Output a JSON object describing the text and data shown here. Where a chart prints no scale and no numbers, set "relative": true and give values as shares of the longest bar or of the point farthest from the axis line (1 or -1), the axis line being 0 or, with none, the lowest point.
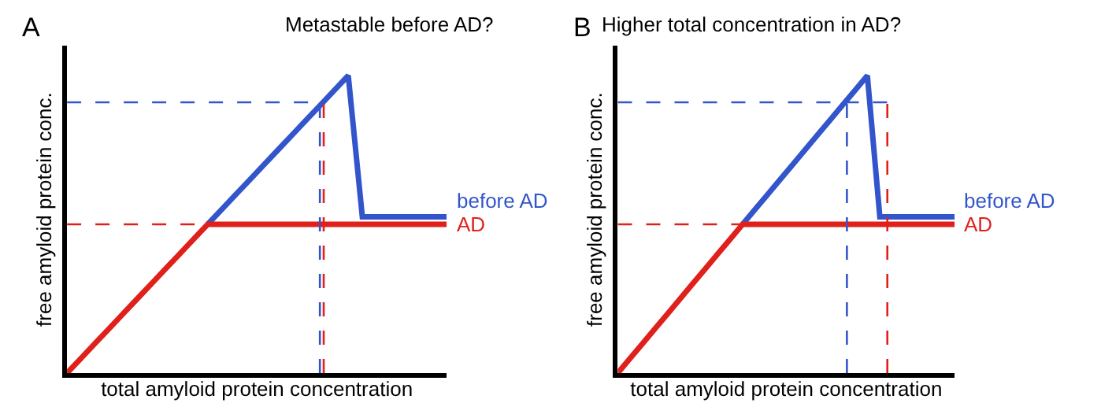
{
  "chart_data": [
    {
      "type": "line",
      "relative": true,
      "title": "Metastable before AD?",
      "xlabel": "total amyloid protein concentration",
      "ylabel": "free amyloid protein conc.",
      "annotations": [
        "A"
      ],
      "legend": false,
      "tick_labels": false,
      "line_style": "solid",
      "marker": "none",
      "categories": [
        null,
        null,
        null,
        null,
        null,
        null,
        null,
        null,
        null,
        null,
        null,
        null,
        null,
        null,
        null,
        null,
        null,
        null,
        null,
        null,
        null,
        null,
        null,
        null,
        null,
        null,
        null,
        null
      ],
      "series": [
        {
          "name": "before AD",
          "color": "#3355cc",
          "values": [
            null,
            null,
            null,
            null,
            null,
            null,
            null,
            null,
            null,
            null,
            0.5,
            0.55,
            0.6,
            0.65,
            0.7,
            0.75,
            0.8,
            0.85,
            0.9,
            0.95,
            1,
            0.525,
            0.525,
            0.525,
            0.525,
            0.525,
            0.525,
            0.525
          ]
        },
        {
          "name": "AD",
          "color": "#e0201b",
          "values": [
            0,
            0.05,
            0.1,
            0.15,
            0.2,
            0.25,
            0.3,
            0.35,
            0.4,
            0.45,
            0.5,
            0.5,
            0.5,
            0.5,
            0.5,
            0.5,
            0.5,
            0.5,
            0.5,
            0.5,
            0.5,
            0.5,
            0.5,
            0.5,
            0.5,
            0.5,
            0.5,
            0.5
          ]
        }
      ],
      "ref_lines": [
        {
          "axis": "y",
          "value": 0.91,
          "color": "#3355cc",
          "line_style": "dashed"
        },
        {
          "axis": "y",
          "value": 0.5,
          "color": "#e0201b",
          "line_style": "dashed"
        }
      ]
    },
    {
      "type": "line",
      "relative": true,
      "title": "Higher total concentration in AD?",
      "xlabel": "total amyloid protein concentration",
      "ylabel": "free amyloid protein conc.",
      "annotations": [
        "B"
      ],
      "legend": false,
      "tick_labels": false,
      "line_style": "solid",
      "marker": "none",
      "categories": [
        null,
        null,
        null,
        null,
        null,
        null,
        null,
        null,
        null,
        null,
        null,
        null,
        null,
        null,
        null,
        null,
        null,
        null,
        null,
        null,
        null,
        null,
        null,
        null,
        null,
        null,
        null,
        null
      ],
      "series": [
        {
          "name": "before AD",
          "color": "#3355cc",
          "values": [
            null,
            null,
            null,
            null,
            null,
            null,
            null,
            null,
            null,
            null,
            0.5,
            0.55,
            0.6,
            0.65,
            0.7,
            0.75,
            0.8,
            0.85,
            0.9,
            0.95,
            1,
            0.525,
            0.525,
            0.525,
            0.525,
            0.525,
            0.525,
            0.525
          ]
        },
        {
          "name": "AD",
          "color": "#e0201b",
          "values": [
            0,
            0.05,
            0.1,
            0.15,
            0.2,
            0.25,
            0.3,
            0.35,
            0.4,
            0.45,
            0.5,
            0.5,
            0.5,
            0.5,
            0.5,
            0.5,
            0.5,
            0.5,
            0.5,
            0.5,
            0.5,
            0.5,
            0.5,
            0.5,
            0.5,
            0.5,
            0.5,
            0.5
          ]
        }
      ],
      "ref_lines": [
        {
          "axis": "y",
          "value": 0.91,
          "color": "#3355cc",
          "line_style": "dashed"
        },
        {
          "axis": "y",
          "value": 0.5,
          "color": "#e0201b",
          "line_style": "dashed"
        }
      ]
    }
  ]
}
